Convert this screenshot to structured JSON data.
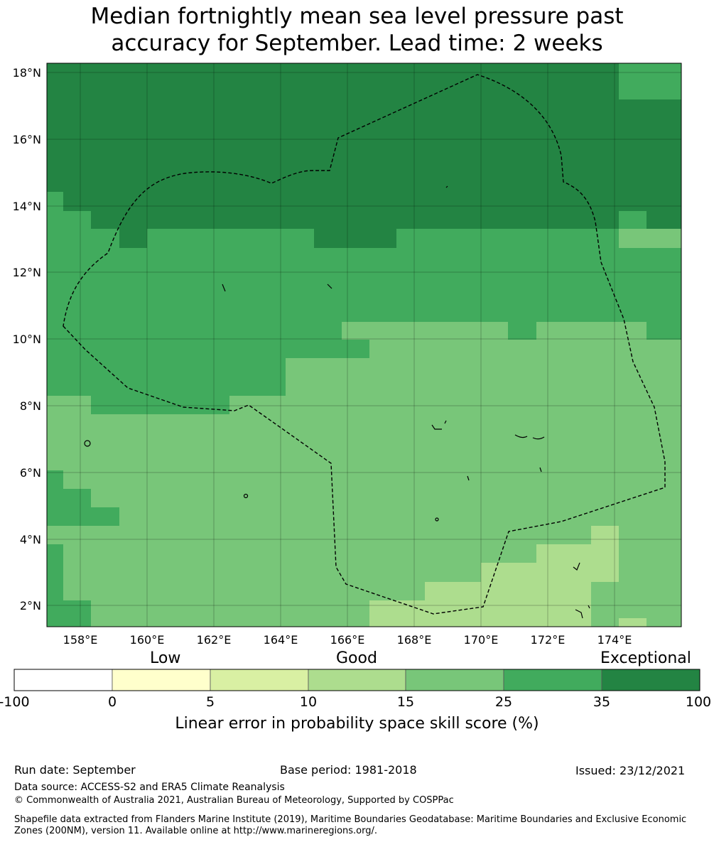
{
  "title_line1": "Median fortnightly mean sea level pressure past",
  "title_line2": "accuracy for September. Lead time: 2 weeks",
  "map": {
    "lon_range": [
      157,
      176
    ],
    "lat_range": [
      1.4,
      18.4
    ],
    "lon_ticks": [
      "158°E",
      "160°E",
      "162°E",
      "164°E",
      "166°E",
      "168°E",
      "170°E",
      "172°E",
      "174°E"
    ],
    "lat_ticks": [
      "2°N",
      "4°N",
      "6°N",
      "8°N",
      "10°N",
      "12°N",
      "14°N",
      "16°N",
      "18°N"
    ],
    "colors": {
      "exceptional": "#238443",
      "very_good": "#41ab5d",
      "good_high": "#78c679",
      "good_low": "#addd8e",
      "low_high": "#d9f0a3",
      "low": "#ffffcc",
      "none": "#ffffff"
    }
  },
  "colorbar": {
    "categories": [
      "Low",
      "Good",
      "Exceptional"
    ],
    "ticks": [
      "-100",
      "0",
      "5",
      "10",
      "15",
      "25",
      "35",
      "100"
    ],
    "colors": [
      "#ffffff",
      "#ffffcc",
      "#d9f0a3",
      "#addd8e",
      "#78c679",
      "#41ab5d",
      "#238443"
    ],
    "label": "Linear error in probability space skill score (%)"
  },
  "footer": {
    "run_date": "Run date: September",
    "base_period": "Base period: 1981-2018",
    "issued": "Issued: 23/12/2021",
    "data_source": "Data source: ACCESS-S2 and ERA5 Climate Reanalysis",
    "copyright": "© Commonwealth of Australia 2021, Australian Bureau of Meteorology, Supported by COSPPac",
    "shapefile": "Shapefile data extracted from Flanders Marine Institute (2019), Maritime Boundaries Geodatabase: Maritime Boundaries and Exclusive Economic Zones (200NM), version 11. Available online at http://www.marineregions.org/."
  }
}
